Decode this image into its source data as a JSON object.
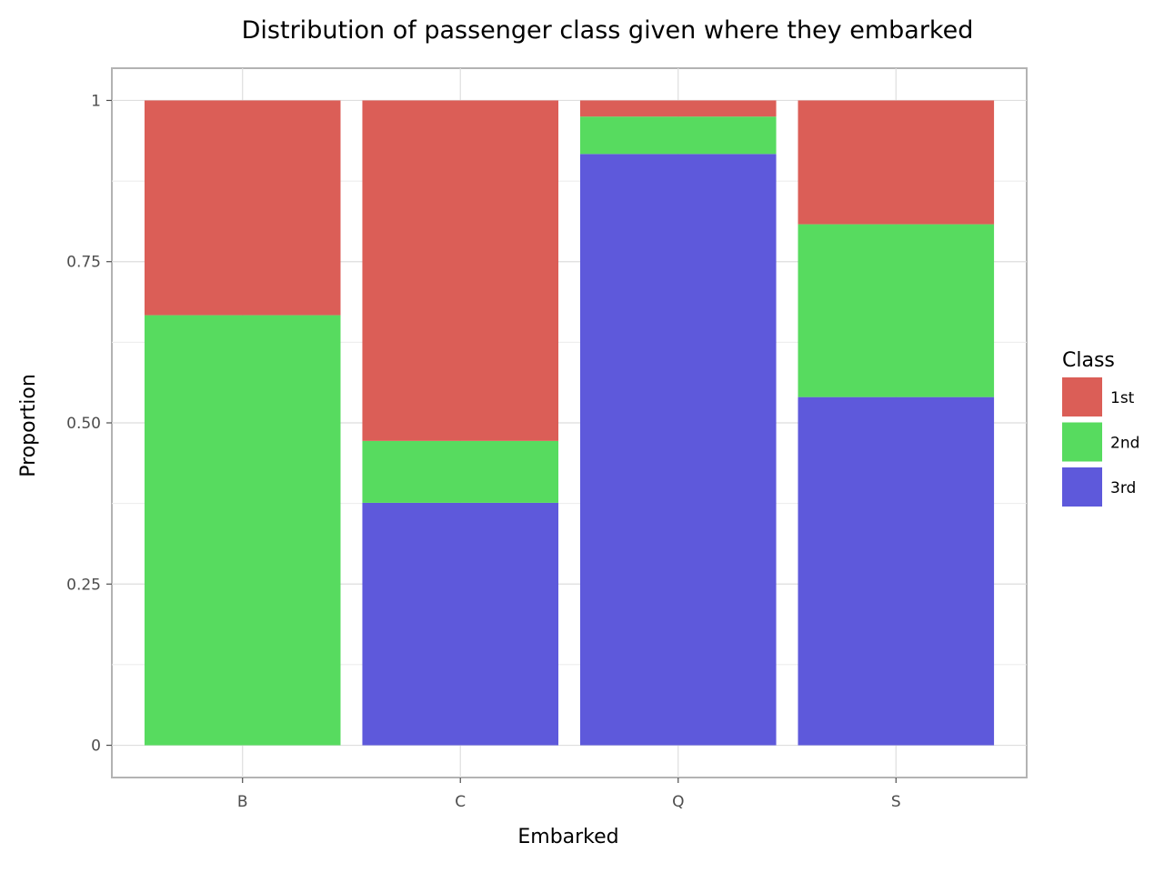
{
  "chart_data": {
    "type": "bar",
    "stacked": true,
    "title": "Distribution of passenger class given where they embarked",
    "xlabel": "Embarked",
    "ylabel": "Proportion",
    "categories": [
      "B",
      "C",
      "Q",
      "S"
    ],
    "ylim": [
      -0.05,
      1.05
    ],
    "yticks": [
      0,
      0.25,
      0.5,
      0.75,
      1
    ],
    "ytick_labels": [
      "0",
      "0.25",
      "0.50",
      "0.75",
      "1"
    ],
    "grid": true,
    "legend": {
      "title": "Class",
      "position": "right"
    },
    "series": [
      {
        "name": "3rd",
        "color": "#5e59db",
        "values": [
          0.0,
          0.376,
          0.917,
          0.54
        ]
      },
      {
        "name": "2nd",
        "color": "#57db5f",
        "values": [
          0.667,
          0.096,
          0.058,
          0.268
        ]
      },
      {
        "name": "1st",
        "color": "#db5e57",
        "values": [
          0.333,
          0.528,
          0.025,
          0.192
        ]
      }
    ],
    "legend_order": [
      "1st",
      "2nd",
      "3rd"
    ]
  }
}
